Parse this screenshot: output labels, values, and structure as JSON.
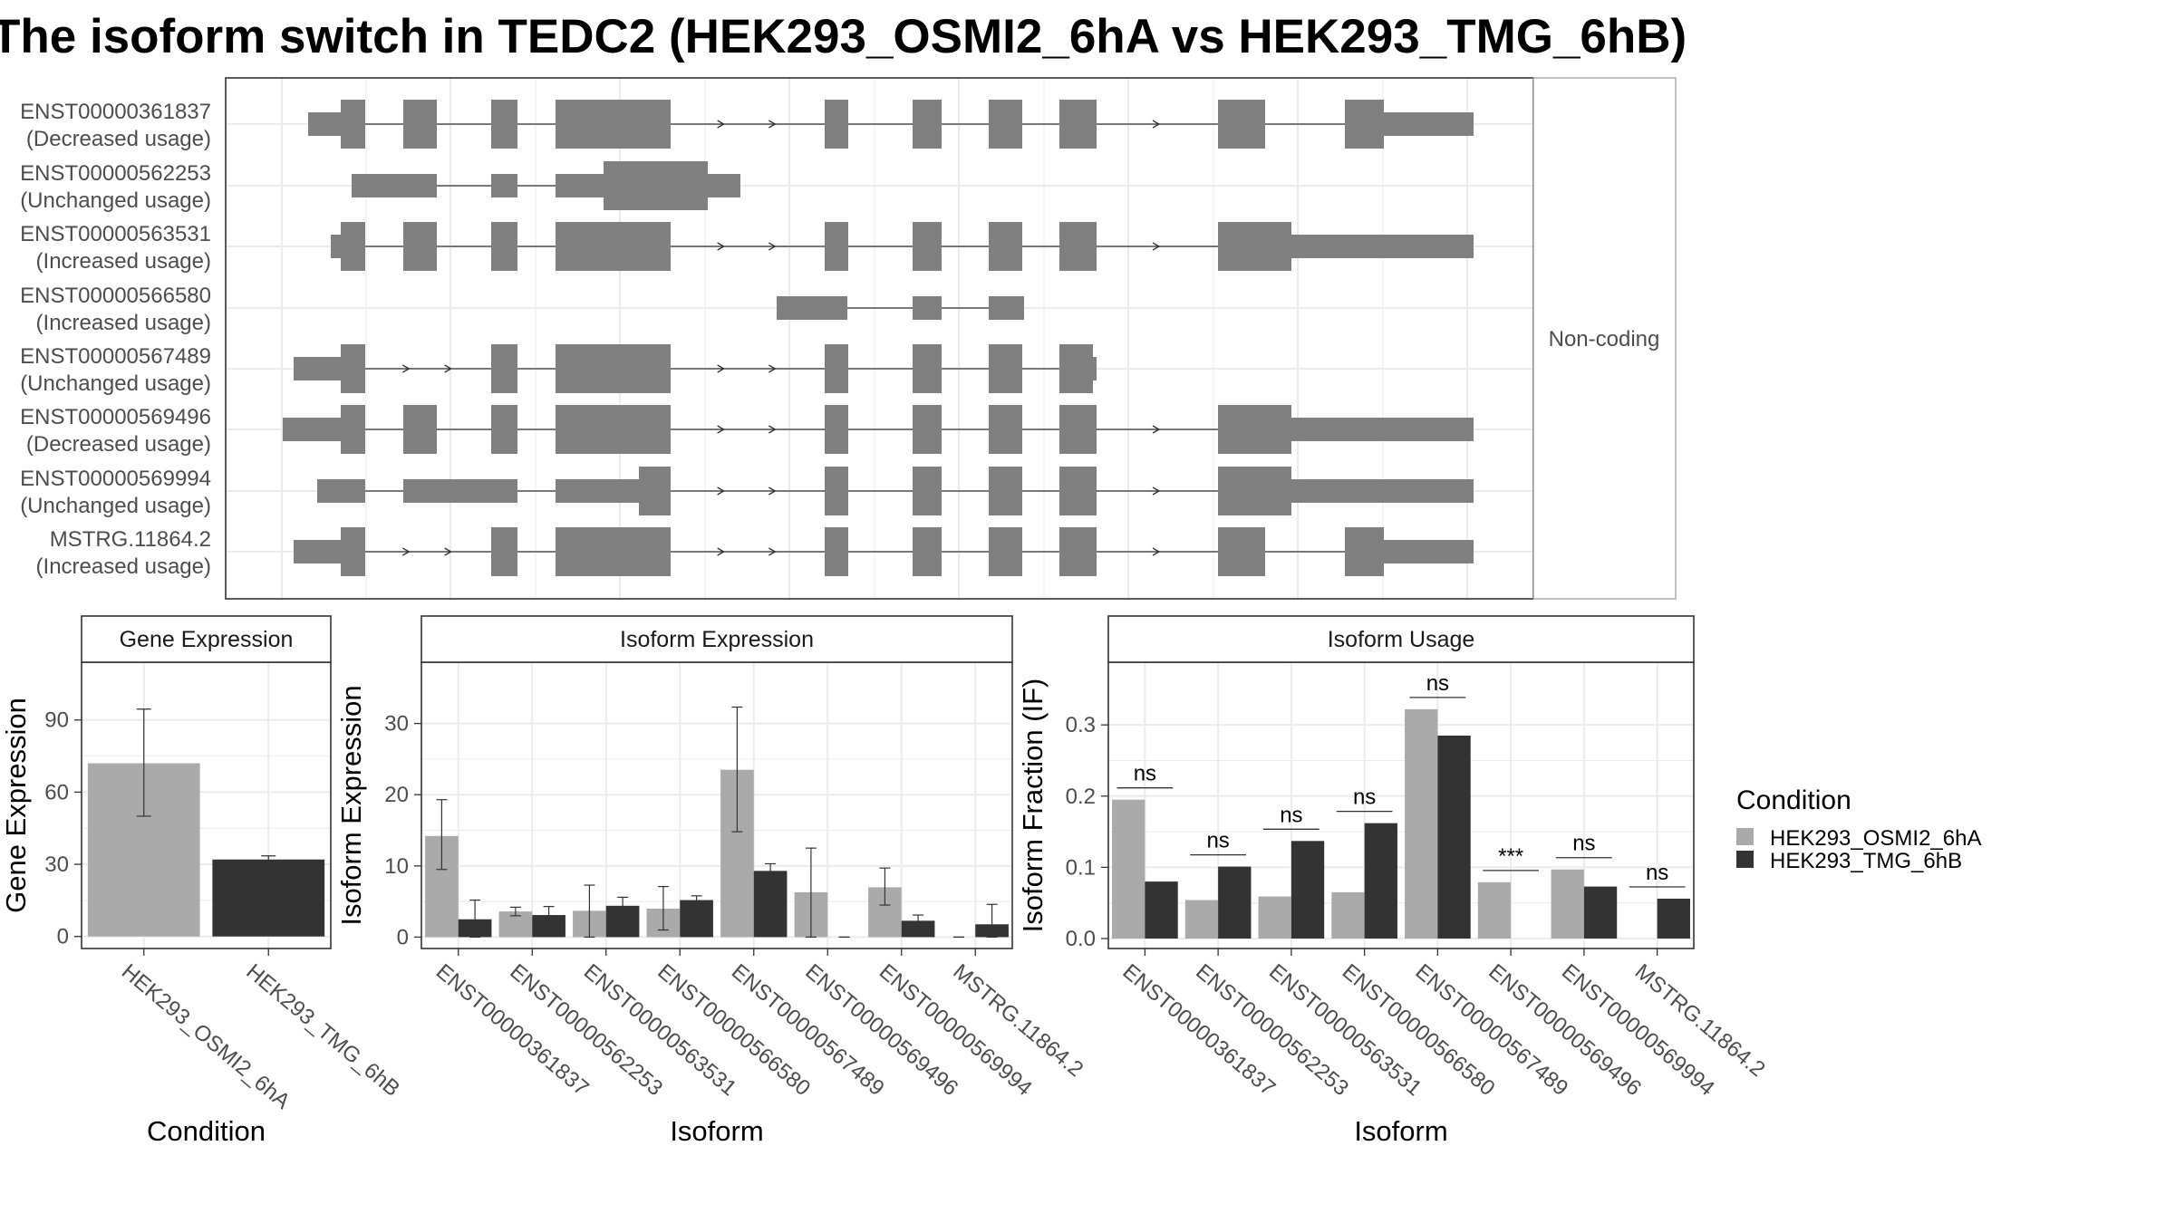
{
  "title": "The isoform switch in TEDC2 (HEK293_OSMI2_6hA vs HEK293_TMG_6hB)",
  "colors": {
    "exon": "#808080",
    "cond1": "#aaaaaa",
    "cond2": "#333333",
    "grid": "#ebebeb",
    "border": "#333333",
    "strip_bg": "#ffffff"
  },
  "transcripts": {
    "strip_label": "Non-coding",
    "items": [
      {
        "id": "ENST00000361837",
        "status": "(Decreased usage)"
      },
      {
        "id": "ENST00000562253",
        "status": "(Unchanged usage)"
      },
      {
        "id": "ENST00000563531",
        "status": "(Increased usage)"
      },
      {
        "id": "ENST00000566580",
        "status": "(Increased usage)"
      },
      {
        "id": "ENST00000567489",
        "status": "(Unchanged usage)"
      },
      {
        "id": "ENST00000569496",
        "status": "(Decreased usage)"
      },
      {
        "id": "ENST00000569994",
        "status": "(Unchanged usage)"
      },
      {
        "id": "MSTRG.11864.2",
        "status": "(Increased usage)"
      }
    ]
  },
  "chart_data": [
    {
      "type": "bar",
      "panel": "Gene Expression",
      "xlabel": "Condition",
      "ylabel": "Gene Expression",
      "categories": [
        "HEK293_OSMI2_6hA",
        "HEK293_TMG_6hB"
      ],
      "values": [
        72,
        32
      ],
      "error_low": [
        50,
        31
      ],
      "error_high": [
        94.5,
        33.5
      ],
      "yticks": [
        0,
        30,
        60,
        90
      ],
      "ylim": [
        -5,
        114
      ]
    },
    {
      "type": "bar",
      "panel": "Isoform Expression",
      "xlabel": "Isoform",
      "ylabel": "Isoform Expression",
      "categories": [
        "ENST00000361837",
        "ENST00000562253",
        "ENST00000563531",
        "ENST00000566580",
        "ENST00000567489",
        "ENST00000569496",
        "ENST00000569994",
        "MSTRG.11864.2"
      ],
      "series": [
        {
          "name": "HEK293_OSMI2_6hA",
          "values": [
            14.2,
            3.6,
            3.7,
            4.0,
            23.5,
            6.3,
            7.0,
            0.0
          ],
          "error_low": [
            9.5,
            3.0,
            0.0,
            1.0,
            14.8,
            0.0,
            4.5,
            0.0
          ],
          "error_high": [
            19.3,
            4.2,
            7.3,
            7.1,
            32.3,
            12.5,
            9.7,
            0.0
          ]
        },
        {
          "name": "HEK293_TMG_6hB",
          "values": [
            2.5,
            3.1,
            4.4,
            5.2,
            9.3,
            0.0,
            2.3,
            1.8
          ],
          "error_low": [
            0.0,
            1.9,
            3.2,
            4.6,
            8.3,
            0.0,
            1.5,
            0.0
          ],
          "error_high": [
            5.2,
            4.3,
            5.6,
            5.8,
            10.3,
            0.0,
            3.1,
            4.6
          ]
        }
      ],
      "yticks": [
        0,
        10,
        20,
        30
      ],
      "ylim": [
        -1.6,
        38.6
      ]
    },
    {
      "type": "bar",
      "panel": "Isoform Usage",
      "xlabel": "Isoform",
      "ylabel": "Isoform Fraction (IF)",
      "categories": [
        "ENST00000361837",
        "ENST00000562253",
        "ENST00000563531",
        "ENST00000566580",
        "ENST00000567489",
        "ENST00000569496",
        "ENST00000569994",
        "MSTRG.11864.2"
      ],
      "series": [
        {
          "name": "HEK293_OSMI2_6hA",
          "values": [
            0.195,
            0.054,
            0.059,
            0.065,
            0.322,
            0.079,
            0.097,
            0.0
          ]
        },
        {
          "name": "HEK293_TMG_6hB",
          "values": [
            0.08,
            0.101,
            0.137,
            0.162,
            0.285,
            0.0,
            0.073,
            0.056
          ]
        }
      ],
      "significance": [
        "ns",
        "ns",
        "ns",
        "ns",
        "ns",
        "***",
        "ns",
        "ns"
      ],
      "yticks": [
        0.0,
        0.1,
        0.2,
        0.3
      ],
      "ylim": [
        -0.014,
        0.388
      ]
    }
  ],
  "legend": {
    "title": "Condition",
    "items": [
      "HEK293_OSMI2_6hA",
      "HEK293_TMG_6hB"
    ]
  }
}
